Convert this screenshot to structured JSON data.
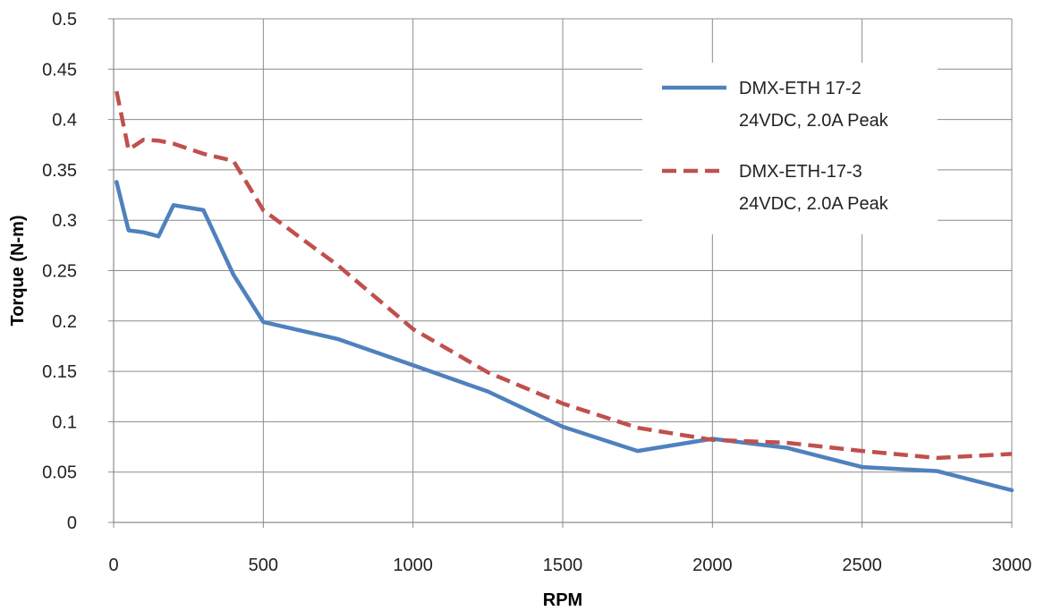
{
  "chart_data": {
    "type": "line",
    "xlabel": "RPM",
    "ylabel": "Torque (N-m)",
    "xlim": [
      0,
      3000
    ],
    "ylim": [
      0,
      0.5
    ],
    "x_ticks": [
      "0",
      "500",
      "1000",
      "1500",
      "2000",
      "2500",
      "3000"
    ],
    "y_ticks": [
      "0",
      "0.05",
      "0.1",
      "0.15",
      "0.2",
      "0.25",
      "0.3",
      "0.35",
      "0.4",
      "0.45",
      "0.5"
    ],
    "grid": true,
    "legend_position": "top-right",
    "series": [
      {
        "name": "DMX-ETH 17-2 24VDC, 2.0A Peak",
        "legend_lines": [
          "DMX-ETH 17-2",
          "24VDC, 2.0A Peak"
        ],
        "color": "#4F81BD",
        "style": "solid",
        "points": [
          [
            10,
            0.338
          ],
          [
            50,
            0.29
          ],
          [
            100,
            0.288
          ],
          [
            150,
            0.284
          ],
          [
            200,
            0.315
          ],
          [
            300,
            0.31
          ],
          [
            400,
            0.246
          ],
          [
            500,
            0.199
          ],
          [
            750,
            0.182
          ],
          [
            1000,
            0.156
          ],
          [
            1250,
            0.13
          ],
          [
            1500,
            0.095
          ],
          [
            1750,
            0.071
          ],
          [
            2000,
            0.083
          ],
          [
            2250,
            0.074
          ],
          [
            2500,
            0.055
          ],
          [
            2750,
            0.051
          ],
          [
            3000,
            0.032
          ]
        ]
      },
      {
        "name": "DMX-ETH-17-3 24VDC, 2.0A Peak",
        "legend_lines": [
          "DMX-ETH-17-3",
          "24VDC, 2.0A Peak"
        ],
        "color": "#C0504D",
        "style": "dashed",
        "points": [
          [
            10,
            0.428
          ],
          [
            50,
            0.37
          ],
          [
            100,
            0.38
          ],
          [
            150,
            0.379
          ],
          [
            200,
            0.376
          ],
          [
            300,
            0.366
          ],
          [
            400,
            0.359
          ],
          [
            500,
            0.31
          ],
          [
            750,
            0.255
          ],
          [
            1000,
            0.192
          ],
          [
            1250,
            0.149
          ],
          [
            1500,
            0.118
          ],
          [
            1750,
            0.094
          ],
          [
            2000,
            0.082
          ],
          [
            2250,
            0.079
          ],
          [
            2500,
            0.071
          ],
          [
            2750,
            0.064
          ],
          [
            3000,
            0.068
          ]
        ]
      }
    ]
  }
}
